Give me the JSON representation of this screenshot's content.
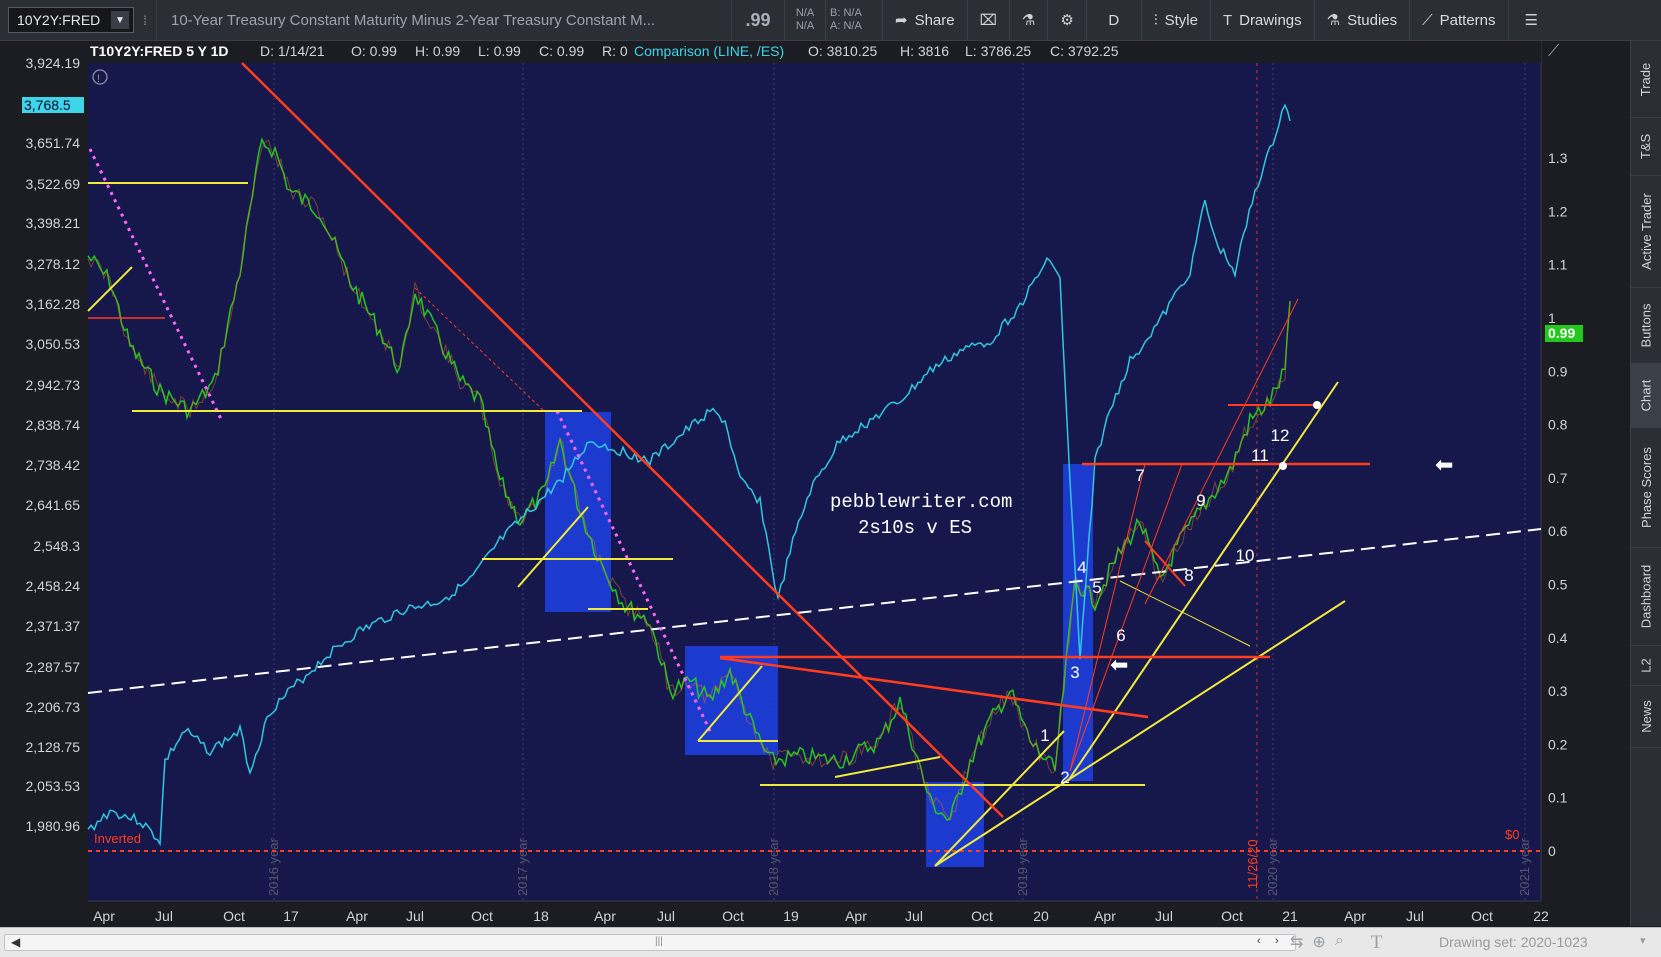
{
  "toolbar": {
    "symbol": "10Y2Y:FRED",
    "description": "10-Year Treasury Constant Maturity Minus 2-Year Treasury Constant M...",
    "price": ".99",
    "na_top": "N/A",
    "na_bottom": "N/A",
    "bid": "B: N/A",
    "ask": "A: N/A",
    "share": "Share",
    "aggregation": "D",
    "style": "Style",
    "drawings": "Drawings",
    "studies": "Studies",
    "patterns": "Patterns"
  },
  "header": {
    "symbol_period": "T10Y2Y:FRED 5 Y 1D",
    "date": "D: 1/14/21",
    "open": "O: 0.99",
    "high": "H: 0.99",
    "low": "L: 0.99",
    "close": "C: 0.99",
    "range": "R: 0",
    "comparison": "Comparison (LINE, /ES)",
    "comp_open": "O: 3810.25",
    "comp_high": "H: 3816",
    "comp_low": "L: 3786.25",
    "comp_close": "C: 3792.25"
  },
  "left_axis": [
    "3,924.19",
    "3,651.74",
    "3,522.69",
    "3,398.21",
    "3,278.12",
    "3,162.28",
    "3,050.53",
    "2,942.73",
    "2,838.74",
    "2,738.42",
    "2,641.65",
    "2,548.3",
    "2,458.24",
    "2,371.37",
    "2,287.57",
    "2,206.73",
    "2,128.75",
    "2,053.53",
    "1,980.96"
  ],
  "left_highlight": "3,768.5",
  "right_axis": [
    "1.3",
    "1.2",
    "1.1",
    "1",
    "0.9",
    "0.8",
    "0.7",
    "0.6",
    "0.5",
    "0.4",
    "0.3",
    "0.2",
    "0.1",
    "0"
  ],
  "right_highlight": "0.99",
  "x_axis": [
    "Apr",
    "Jul",
    "Oct",
    "17",
    "Apr",
    "Jul",
    "Oct",
    "18",
    "Apr",
    "Jul",
    "Oct",
    "19",
    "Apr",
    "Jul",
    "Oct",
    "20",
    "Apr",
    "Jul",
    "Oct",
    "21",
    "Apr",
    "Jul",
    "Oct",
    "22"
  ],
  "year_labels": [
    "2016 year",
    "2017 year",
    "2018 year",
    "2019 year",
    "2020 year",
    "2021 year"
  ],
  "annotations": {
    "watermark_site": "pebblewriter.com",
    "watermark_sub": "2s10s v ES",
    "inverted": "Inverted",
    "zero": "$0",
    "date_marker": "11/26/20",
    "counts": [
      "1",
      "2",
      "3",
      "4",
      "5",
      "6",
      "7",
      "8",
      "9",
      "10",
      "11",
      "12"
    ]
  },
  "sidebar": [
    "Trade",
    "T&S",
    "Active Trader",
    "Buttons",
    "Chart",
    "Phase Scores",
    "Dashboard",
    "L2",
    "News"
  ],
  "status": {
    "drawing_set": "Drawing set: 2020-1023"
  },
  "colors": {
    "chart_bg": "#16174a",
    "es_line": "#30c8e0",
    "trend_red": "#ff3c1e",
    "trend_yellow": "#f0ea3c",
    "blue_box": "#1f41e6",
    "price_green": "#22c81e"
  }
}
